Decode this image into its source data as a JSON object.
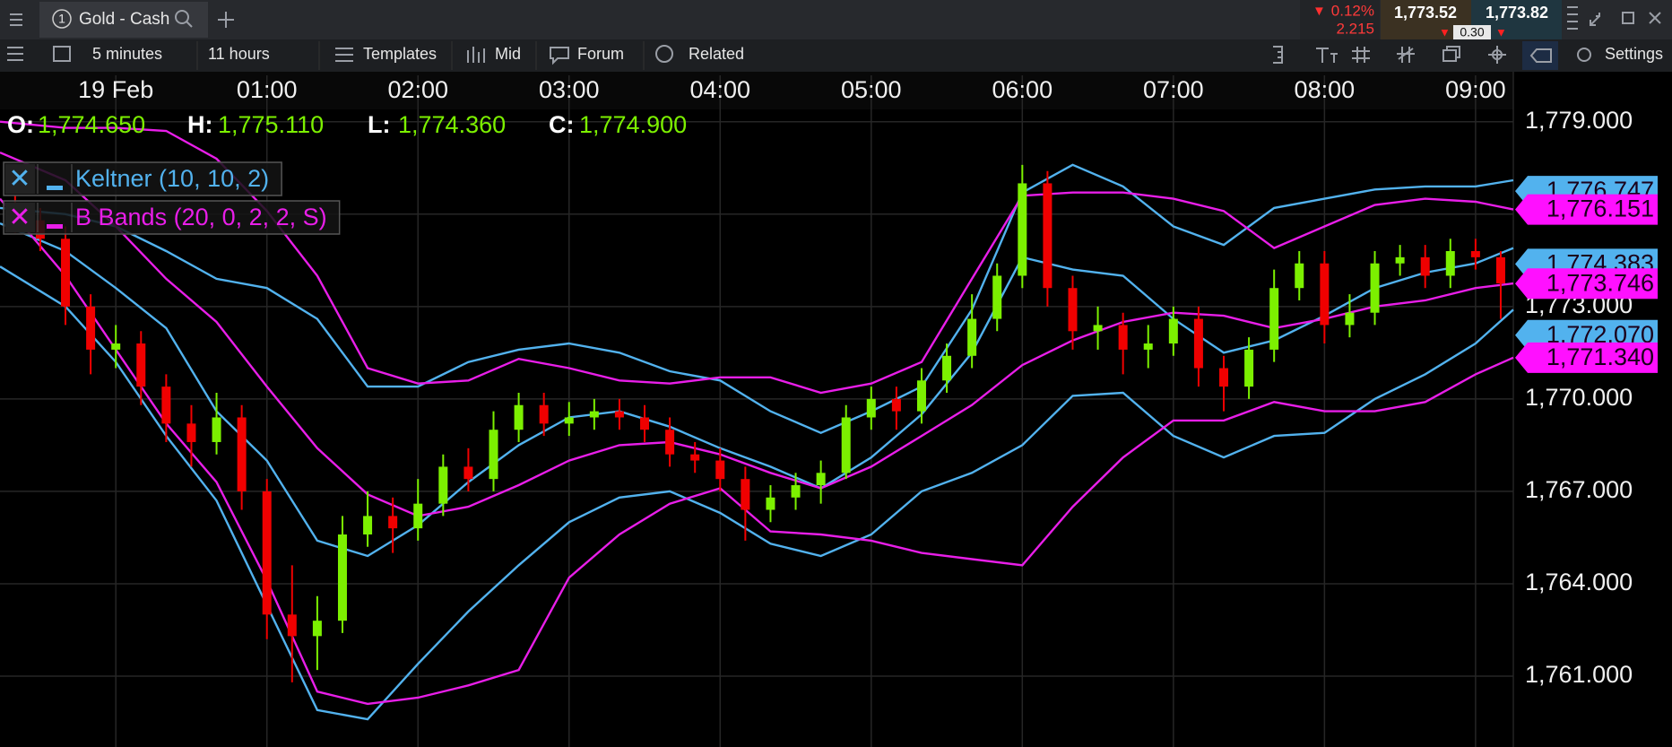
{
  "toolbar": {
    "tab_number": "1",
    "instrument": "Gold - Cash",
    "change_pct": "0.12%",
    "change": "2.215",
    "sell": "1,773.52",
    "buy": "1,773.82",
    "spread": "0.30"
  },
  "toolbar2": {
    "interval": "5 minutes",
    "range": "11 hours",
    "templates": "Templates",
    "price_type": "Mid",
    "forum": "Forum",
    "related": "Related",
    "settings": "Settings"
  },
  "chart_data": {
    "type": "candlestick",
    "ohlc": [
      {
        "label": "O:",
        "value": "1,774.650"
      },
      {
        "label": "H:",
        "value": "1,775.110"
      },
      {
        "label": "L:",
        "value": "1,774.360"
      },
      {
        "label": "C:",
        "value": "1,774.900"
      }
    ],
    "up_color": "#7cf000",
    "down_color": "#f00000",
    "x": [
      -40,
      -30,
      -20,
      -10,
      0,
      10,
      20,
      30,
      40,
      50,
      60,
      70,
      80,
      90,
      100,
      110,
      120,
      130,
      140,
      150,
      160,
      170,
      180,
      190,
      200,
      210,
      220,
      230,
      240,
      250,
      260,
      270,
      280,
      290,
      300,
      310,
      320,
      330,
      340,
      350,
      360,
      370,
      380,
      390,
      400,
      410,
      420,
      430,
      440,
      450,
      460,
      470,
      480,
      490,
      500,
      510,
      520,
      530,
      540,
      550
    ],
    "open": [
      1776.2,
      1775.8,
      1775.2,
      1773.0,
      1771.6,
      1771.8,
      1770.4,
      1769.2,
      1768.6,
      1769.4,
      1767.0,
      1763.0,
      1762.3,
      1762.8,
      1765.6,
      1766.2,
      1765.8,
      1766.6,
      1767.8,
      1767.4,
      1769.0,
      1769.8,
      1769.2,
      1769.4,
      1769.6,
      1769.4,
      1769.0,
      1768.2,
      1768.0,
      1767.4,
      1766.4,
      1766.8,
      1767.2,
      1767.6,
      1769.4,
      1770.0,
      1769.6,
      1770.6,
      1771.4,
      1772.6,
      1774.0,
      1777.0,
      1773.6,
      1772.2,
      1772.4,
      1771.6,
      1771.8,
      1772.6,
      1771.0,
      1770.4,
      1771.6,
      1773.6,
      1774.4,
      1772.4,
      1772.8,
      1774.4,
      1774.6,
      1774.0,
      1774.8,
      1774.6
    ],
    "high": [
      1776.6,
      1776.2,
      1775.6,
      1773.4,
      1772.4,
      1772.2,
      1770.8,
      1769.8,
      1770.2,
      1769.8,
      1767.4,
      1764.6,
      1763.6,
      1766.2,
      1767.0,
      1766.8,
      1767.4,
      1768.2,
      1768.4,
      1769.6,
      1770.2,
      1770.2,
      1769.9,
      1770.0,
      1770.0,
      1769.8,
      1769.4,
      1768.6,
      1768.4,
      1767.8,
      1767.2,
      1767.6,
      1768.0,
      1769.8,
      1770.4,
      1770.4,
      1771.0,
      1771.8,
      1773.4,
      1774.4,
      1777.6,
      1777.4,
      1774.0,
      1773.0,
      1772.8,
      1772.4,
      1773.0,
      1773.0,
      1771.4,
      1772.0,
      1774.2,
      1774.8,
      1774.8,
      1773.4,
      1774.8,
      1775.0,
      1775.0,
      1775.2,
      1775.2,
      1774.8
    ],
    "low": [
      1775.4,
      1774.8,
      1772.4,
      1770.8,
      1771.0,
      1769.8,
      1768.6,
      1767.8,
      1768.2,
      1766.4,
      1762.2,
      1760.8,
      1761.2,
      1762.4,
      1765.2,
      1765.0,
      1765.4,
      1766.2,
      1767.0,
      1767.0,
      1768.6,
      1768.8,
      1768.8,
      1769.0,
      1769.0,
      1768.6,
      1767.8,
      1767.6,
      1767.0,
      1765.4,
      1766.0,
      1766.4,
      1766.6,
      1767.4,
      1769.0,
      1769.0,
      1769.2,
      1770.2,
      1771.0,
      1772.2,
      1773.6,
      1773.0,
      1771.6,
      1771.6,
      1770.8,
      1771.0,
      1771.4,
      1770.4,
      1769.6,
      1770.0,
      1771.2,
      1773.2,
      1771.8,
      1772.0,
      1772.4,
      1774.0,
      1773.6,
      1773.6,
      1774.2,
      1772.6
    ],
    "close": [
      1775.8,
      1775.2,
      1773.0,
      1771.6,
      1771.8,
      1770.4,
      1769.2,
      1768.6,
      1769.4,
      1767.0,
      1763.0,
      1762.3,
      1762.8,
      1765.6,
      1766.2,
      1765.8,
      1766.6,
      1767.8,
      1767.4,
      1769.0,
      1769.8,
      1769.2,
      1769.4,
      1769.6,
      1769.4,
      1769.0,
      1768.2,
      1768.0,
      1767.4,
      1766.4,
      1766.8,
      1767.2,
      1767.6,
      1769.4,
      1770.0,
      1769.6,
      1770.6,
      1771.4,
      1772.6,
      1774.0,
      1777.0,
      1773.6,
      1772.2,
      1772.4,
      1771.6,
      1771.8,
      1772.6,
      1771.0,
      1770.4,
      1771.6,
      1773.6,
      1774.4,
      1772.4,
      1772.8,
      1774.4,
      1774.6,
      1774.0,
      1774.8,
      1774.6,
      1773.75
    ],
    "indicator_x": [
      -46,
      -20,
      0,
      20,
      40,
      60,
      80,
      100,
      120,
      140,
      160,
      180,
      200,
      220,
      240,
      260,
      280,
      300,
      320,
      340,
      360,
      380,
      400,
      420,
      440,
      460,
      480,
      500,
      520,
      540,
      555
    ],
    "series": [
      {
        "name": "Keltner (10, 10, 2)",
        "color": "#52b2ee",
        "upper": [
          1776.2,
          1776.0,
          1775.6,
          1774.8,
          1773.9,
          1773.6,
          1772.6,
          1770.4,
          1770.4,
          1771.2,
          1771.6,
          1771.8,
          1771.5,
          1770.9,
          1770.6,
          1769.6,
          1768.9,
          1769.6,
          1770.4,
          1772.9,
          1776.7,
          1777.6,
          1776.9,
          1775.6,
          1775.0,
          1776.2,
          1776.5,
          1776.8,
          1776.9,
          1776.9,
          1777.1
        ],
        "middle": [
          1775.7,
          1774.8,
          1773.6,
          1772.3,
          1769.6,
          1768.0,
          1765.4,
          1764.9,
          1765.9,
          1767.3,
          1768.5,
          1769.4,
          1769.6,
          1769.1,
          1768.4,
          1767.8,
          1767.1,
          1768.1,
          1769.5,
          1771.5,
          1774.6,
          1774.2,
          1774.0,
          1772.6,
          1771.5,
          1771.9,
          1772.7,
          1773.6,
          1774.1,
          1774.4,
          1774.9
        ],
        "lower": [
          1774.3,
          1773.0,
          1771.2,
          1768.8,
          1766.7,
          1763.3,
          1759.9,
          1759.6,
          1761.4,
          1763.1,
          1764.6,
          1766.0,
          1766.8,
          1767.0,
          1766.3,
          1765.3,
          1764.9,
          1765.6,
          1767.0,
          1767.6,
          1768.5,
          1770.1,
          1770.2,
          1768.8,
          1768.1,
          1768.8,
          1768.9,
          1770.0,
          1770.8,
          1771.8,
          1772.9
        ]
      },
      {
        "name": "B Bands (20, 0, 2, 2, S)",
        "color": "#e81ee8",
        "upper": [
          1779.0,
          1778.8,
          1778.8,
          1778.7,
          1777.8,
          1776.1,
          1774.0,
          1771.0,
          1770.5,
          1770.6,
          1771.3,
          1771.0,
          1770.6,
          1770.5,
          1770.7,
          1770.7,
          1770.2,
          1770.5,
          1771.2,
          1773.9,
          1776.6,
          1776.7,
          1776.7,
          1776.5,
          1776.1,
          1774.9,
          1775.6,
          1776.3,
          1776.5,
          1776.4,
          1776.15
        ],
        "middle": [
          1778.0,
          1777.1,
          1775.6,
          1773.9,
          1772.5,
          1770.4,
          1768.4,
          1766.9,
          1766.2,
          1766.5,
          1767.2,
          1768.0,
          1768.5,
          1768.6,
          1768.2,
          1767.6,
          1767.1,
          1767.8,
          1768.8,
          1769.8,
          1771.1,
          1771.9,
          1772.5,
          1772.8,
          1772.7,
          1772.3,
          1772.6,
          1773.0,
          1773.2,
          1773.6,
          1773.75
        ],
        "lower": [
          1776.5,
          1774.0,
          1771.6,
          1769.2,
          1767.3,
          1764.1,
          1760.5,
          1760.1,
          1760.3,
          1760.7,
          1761.2,
          1764.2,
          1765.6,
          1766.6,
          1767.1,
          1765.7,
          1765.6,
          1765.4,
          1765.0,
          1764.8,
          1764.6,
          1766.5,
          1768.1,
          1769.3,
          1769.3,
          1769.9,
          1769.6,
          1769.6,
          1769.9,
          1770.8,
          1771.34
        ]
      }
    ],
    "xlim": [
      -46,
      555
    ],
    "xticks": [
      {
        "value": 0,
        "label": "19 Feb"
      },
      {
        "value": 60,
        "label": "01:00"
      },
      {
        "value": 120,
        "label": "02:00"
      },
      {
        "value": 180,
        "label": "03:00"
      },
      {
        "value": 240,
        "label": "04:00"
      },
      {
        "value": 300,
        "label": "05:00"
      },
      {
        "value": 360,
        "label": "06:00"
      },
      {
        "value": 420,
        "label": "07:00"
      },
      {
        "value": 480,
        "label": "08:00"
      },
      {
        "value": 540,
        "label": "09:00"
      }
    ],
    "ylim": [
      1758.7,
      1779.4
    ],
    "yticks": [
      {
        "value": 1761,
        "label": "1,761.000"
      },
      {
        "value": 1764,
        "label": "1,764.000"
      },
      {
        "value": 1767,
        "label": "1,767.000"
      },
      {
        "value": 1770,
        "label": "1,770.000"
      },
      {
        "value": 1773,
        "label": "1,773.000"
      },
      {
        "value": 1776,
        "label": "1,776.000"
      },
      {
        "value": 1779,
        "label": "1,779.000"
      }
    ],
    "grid": true,
    "price_tags": [
      {
        "value": 1776.747,
        "label": "1,776.747",
        "color": "#52b2ee"
      },
      {
        "value": 1774.383,
        "label": "1,774.383",
        "color": "#52b2ee"
      },
      {
        "value": 1772.07,
        "label": "1,772.070",
        "color": "#52b2ee"
      },
      {
        "value": 1776.151,
        "label": "1,776.151",
        "color": "#ff10ff"
      },
      {
        "value": 1773.746,
        "label": "1,773.746",
        "color": "#ff10ff"
      },
      {
        "value": 1771.34,
        "label": "1,771.340",
        "color": "#ff10ff"
      }
    ]
  }
}
